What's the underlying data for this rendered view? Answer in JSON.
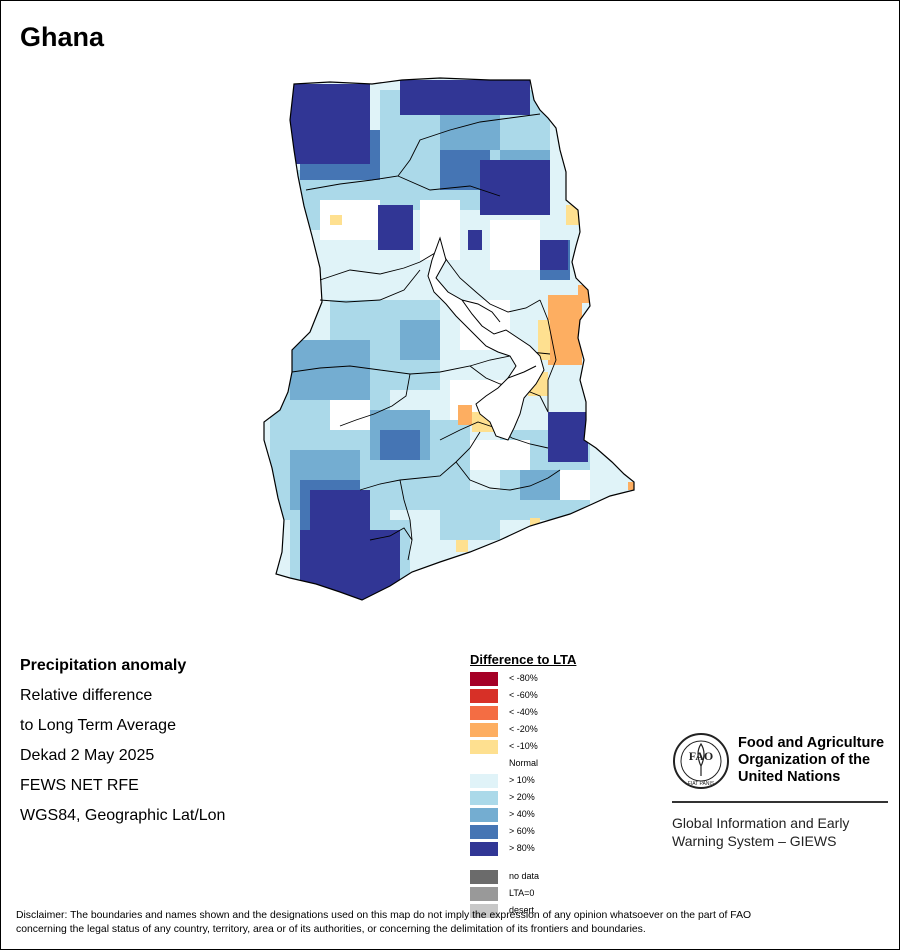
{
  "map_title": "Ghana",
  "info": {
    "heading": "Precipitation anomaly",
    "line1": "Relative difference",
    "line2": "to Long Term Average",
    "period": "Dekad 2 May 2025",
    "source": "FEWS NET RFE",
    "projection": "WGS84, Geographic Lat/Lon"
  },
  "legend": {
    "title": "Difference to LTA",
    "items": [
      {
        "label": "< -80%",
        "color": "#a50026"
      },
      {
        "label": "< -60%",
        "color": "#d73027"
      },
      {
        "label": "< -40%",
        "color": "#f46d43"
      },
      {
        "label": "< -20%",
        "color": "#fdae61"
      },
      {
        "label": "< -10%",
        "color": "#fee090"
      },
      {
        "label": "Normal",
        "color": "#ffffff"
      },
      {
        "label": "> 10%",
        "color": "#e0f3f8"
      },
      {
        "label": "> 20%",
        "color": "#abd9e9"
      },
      {
        "label": "> 40%",
        "color": "#74add1"
      },
      {
        "label": "> 60%",
        "color": "#4575b4"
      },
      {
        "label": "> 80%",
        "color": "#313695"
      },
      {
        "label": "no data",
        "color": "#6b6b6b"
      },
      {
        "label": "LTA=0",
        "color": "#999999"
      },
      {
        "label": "desert",
        "color": "#c8c8c8"
      }
    ]
  },
  "fao": {
    "logo_text": "FAO",
    "logo_motto": "FIAT PANIS",
    "name_line1": "Food and Agriculture",
    "name_line2": "Organization of the",
    "name_line3": "United Nations",
    "giews_line1": "Global Information and Early",
    "giews_line2": "Warning System – GIEWS"
  },
  "disclaimer_line1": "Disclaimer: The boundaries and names shown and the designations used on this map do not imply the expression of any opinion whatsoever on the part of FAO",
  "disclaimer_line2": "concerning the legal status of any country, territory, area or of its authorities, or concerning the delimitation of its frontiers and boundaries."
}
